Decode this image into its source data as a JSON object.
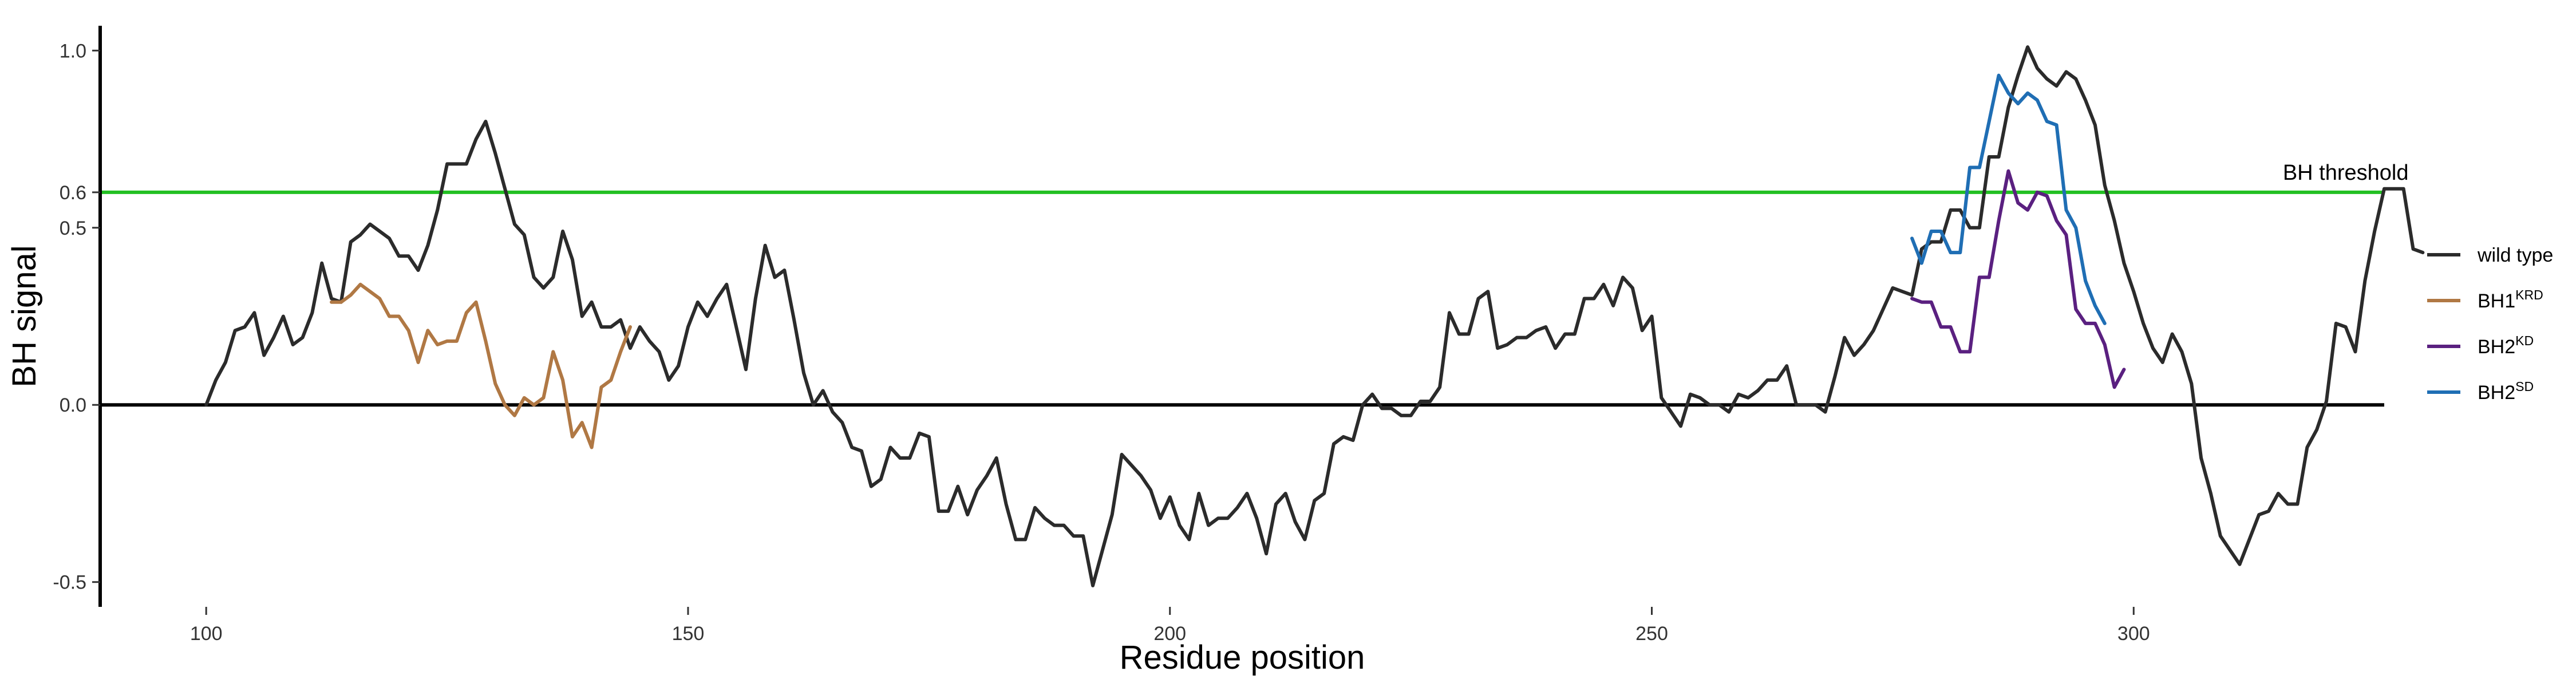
{
  "chart_data": {
    "type": "line",
    "title": "",
    "xlabel": "Residue position",
    "ylabel": "BH signal",
    "xlim": [
      89,
      326
    ],
    "ylim": [
      -0.57,
      1.07
    ],
    "xticks": [
      100,
      150,
      200,
      250,
      300
    ],
    "yticks": [
      {
        "value": -0.5,
        "label": "-0.5"
      },
      {
        "value": 0.0,
        "label": "0.0"
      },
      {
        "value": 0.5,
        "label": "0.5"
      },
      {
        "value": 0.6,
        "label": "0.6"
      },
      {
        "value": 1.0,
        "label": "1.0"
      }
    ],
    "grid": false,
    "legend_position": "right",
    "reference_lines": [
      {
        "value": 0.0,
        "color": "#000000"
      },
      {
        "value": 0.6,
        "color": "#22c022",
        "label": "BH threshold",
        "label_x": 322
      }
    ],
    "series": [
      {
        "name": "wild type",
        "name_base": "wild type",
        "name_sup": "",
        "color": "#2b2b2b",
        "x_start": 100,
        "values": [
          0.0,
          0.07,
          0.12,
          0.21,
          0.22,
          0.26,
          0.14,
          0.19,
          0.25,
          0.17,
          0.19,
          0.26,
          0.4,
          0.3,
          0.29,
          0.46,
          0.48,
          0.51,
          0.49,
          0.47,
          0.42,
          0.42,
          0.38,
          0.45,
          0.55,
          0.68,
          0.68,
          0.68,
          0.75,
          0.8,
          0.71,
          0.61,
          0.51,
          0.48,
          0.36,
          0.33,
          0.36,
          0.49,
          0.41,
          0.25,
          0.29,
          0.22,
          0.22,
          0.24,
          0.16,
          0.22,
          0.18,
          0.15,
          0.07,
          0.11,
          0.22,
          0.29,
          0.25,
          0.3,
          0.34,
          0.22,
          0.1,
          0.3,
          0.45,
          0.36,
          0.38,
          0.24,
          0.09,
          0.0,
          0.04,
          -0.02,
          -0.05,
          -0.12,
          -0.13,
          -0.23,
          -0.21,
          -0.12,
          -0.15,
          -0.15,
          -0.08,
          -0.09,
          -0.3,
          -0.3,
          -0.23,
          -0.31,
          -0.24,
          -0.2,
          -0.15,
          -0.28,
          -0.38,
          -0.38,
          -0.29,
          -0.32,
          -0.34,
          -0.34,
          -0.37,
          -0.37,
          -0.51,
          -0.41,
          -0.31,
          -0.14,
          -0.17,
          -0.2,
          -0.24,
          -0.32,
          -0.26,
          -0.34,
          -0.38,
          -0.25,
          -0.34,
          -0.32,
          -0.32,
          -0.29,
          -0.25,
          -0.32,
          -0.42,
          -0.28,
          -0.25,
          -0.33,
          -0.38,
          -0.27,
          -0.25,
          -0.11,
          -0.09,
          -0.1,
          0.0,
          0.03,
          -0.01,
          -0.01,
          -0.03,
          -0.03,
          0.01,
          0.01,
          0.05,
          0.26,
          0.2,
          0.2,
          0.3,
          0.32,
          0.16,
          0.17,
          0.19,
          0.19,
          0.21,
          0.22,
          0.16,
          0.2,
          0.2,
          0.3,
          0.3,
          0.34,
          0.28,
          0.36,
          0.33,
          0.21,
          0.25,
          0.02,
          -0.02,
          -0.06,
          0.03,
          0.02,
          0.0,
          0.0,
          -0.02,
          0.03,
          0.02,
          0.04,
          0.07,
          0.07,
          0.11,
          0.0,
          0.0,
          0.0,
          -0.02,
          0.08,
          0.19,
          0.14,
          0.17,
          0.21,
          0.27,
          0.33,
          0.32,
          0.31,
          0.44,
          0.46,
          0.46,
          0.55,
          0.55,
          0.5,
          0.5,
          0.7,
          0.7,
          0.84,
          0.93,
          1.01,
          0.95,
          0.92,
          0.9,
          0.94,
          0.92,
          0.86,
          0.79,
          0.62,
          0.52,
          0.4,
          0.32,
          0.23,
          0.16,
          0.12,
          0.2,
          0.15,
          0.06,
          -0.15,
          -0.25,
          -0.37,
          -0.41,
          -0.45,
          -0.38,
          -0.31,
          -0.3,
          -0.25,
          -0.28,
          -0.28,
          -0.12,
          -0.07,
          0.01,
          0.23,
          0.22,
          0.15,
          0.35,
          0.49,
          0.61,
          0.61,
          0.61,
          0.44,
          0.43
        ]
      },
      {
        "name": "BH1KRD",
        "name_base": "BH1",
        "name_sup": "KRD",
        "color": "#b07844",
        "x_start": 113,
        "values": [
          0.29,
          0.29,
          0.31,
          0.34,
          0.32,
          0.3,
          0.25,
          0.25,
          0.21,
          0.12,
          0.21,
          0.17,
          0.18,
          0.18,
          0.26,
          0.29,
          0.18,
          0.06,
          0.0,
          -0.03,
          0.02,
          0.0,
          0.02,
          0.15,
          0.07,
          -0.09,
          -0.05,
          -0.12,
          0.05,
          0.07,
          0.15,
          0.22
        ]
      },
      {
        "name": "BH2KD",
        "name_base": "BH2",
        "name_sup": "KD",
        "color": "#5a2080",
        "x_start": 277,
        "values": [
          0.3,
          0.29,
          0.29,
          0.22,
          0.22,
          0.15,
          0.15,
          0.36,
          0.36,
          0.52,
          0.66,
          0.57,
          0.55,
          0.6,
          0.59,
          0.52,
          0.48,
          0.27,
          0.23,
          0.23,
          0.17,
          0.05,
          0.1
        ]
      },
      {
        "name": "BH2SD",
        "name_base": "BH2",
        "name_sup": "SD",
        "color": "#1f6eb4",
        "x_start": 277,
        "values": [
          0.47,
          0.4,
          0.49,
          0.49,
          0.43,
          0.43,
          0.67,
          0.67,
          0.8,
          0.93,
          0.88,
          0.85,
          0.88,
          0.86,
          0.8,
          0.79,
          0.55,
          0.5,
          0.35,
          0.28,
          0.23
        ]
      }
    ]
  }
}
